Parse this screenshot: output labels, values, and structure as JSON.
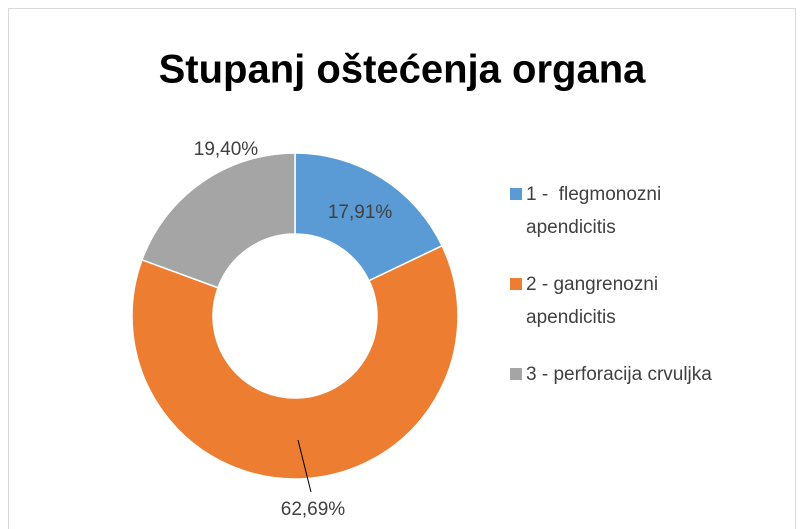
{
  "chart_data": {
    "type": "donut",
    "title": "Stupanj oštećenja organa",
    "categories": [
      "1 -  flegmonozni apendicitis",
      "2 - gangrenozni apendicitis",
      "3 - perforacija crvuljka"
    ],
    "values": [
      17.91,
      62.69,
      19.4
    ],
    "value_labels": [
      "17,91%",
      "62,69%",
      "19,40%"
    ],
    "colors": [
      "#5b9bd5",
      "#ed7d31",
      "#a5a5a5"
    ],
    "legend": "right"
  }
}
